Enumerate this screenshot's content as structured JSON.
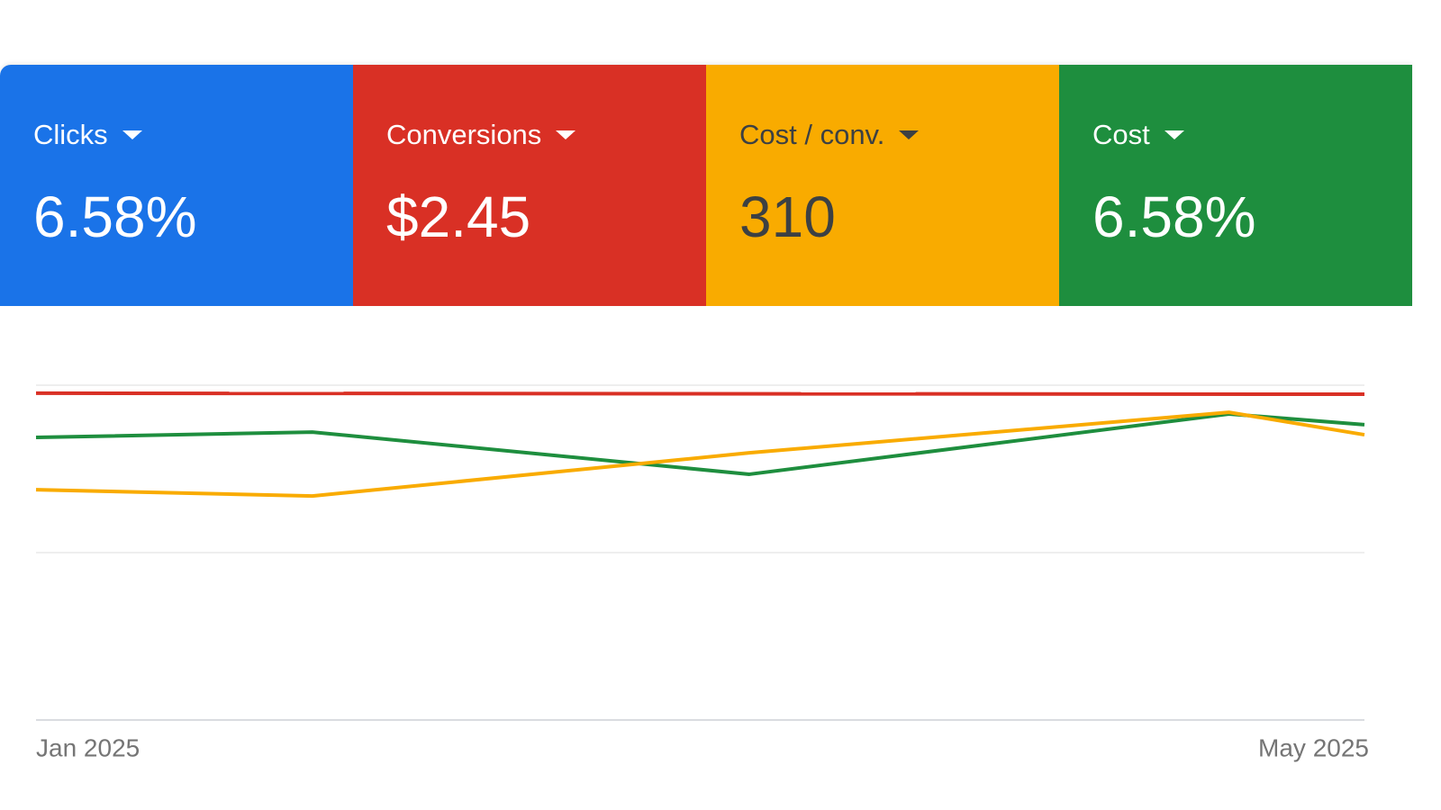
{
  "cards": [
    {
      "label": "Clicks",
      "value": "6.58%",
      "color": "#1a73e8",
      "text_color": "#ffffff"
    },
    {
      "label": "Conversions",
      "value": "$2.45",
      "color": "#d93025",
      "text_color": "#ffffff"
    },
    {
      "label": "Cost / conv.",
      "value": "310",
      "color": "#f9ab00",
      "text_color": "#3c4043"
    },
    {
      "label": "Cost",
      "value": "6.58%",
      "color": "#1e8e3e",
      "text_color": "#ffffff"
    }
  ],
  "chart_data": {
    "type": "line",
    "xlim": [
      0,
      100
    ],
    "xticks": [
      {
        "value": 0,
        "label": "Jan 2025"
      },
      {
        "value": 100,
        "label": "May 2025"
      }
    ],
    "ylim": [
      0,
      100
    ],
    "grid_lines": [
      0,
      50,
      100
    ],
    "series": [
      {
        "color": "#d93025",
        "x": [
          0,
          100
        ],
        "values": [
          97.6,
          97.3
        ]
      },
      {
        "color": "#1e8e3e",
        "x": [
          0,
          20.8,
          53.7,
          89.8,
          100
        ],
        "values": [
          84.4,
          86.0,
          73.4,
          91.4,
          88.2
        ]
      },
      {
        "color": "#f9ab00",
        "x": [
          0,
          20.8,
          53.7,
          89.8,
          100
        ],
        "values": [
          68.8,
          66.9,
          79.8,
          91.9,
          85.2
        ]
      }
    ]
  }
}
